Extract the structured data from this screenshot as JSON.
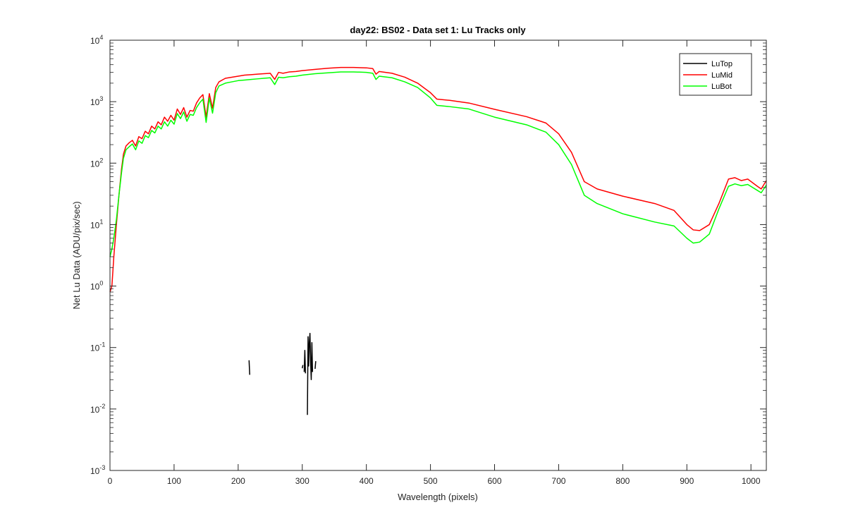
{
  "chart_data": {
    "type": "line",
    "title": "day22: BS02 - Data set 1: Lu Tracks only",
    "xlabel": "Wavelength (pixels)",
    "ylabel": "Net Lu Data (ADU/pix/sec)",
    "xlim": [
      0,
      1024
    ],
    "ylim": [
      0.001,
      10000
    ],
    "yscale": "log",
    "grid": false,
    "legend_position": "top-right",
    "x_ticks": [
      0,
      100,
      200,
      300,
      400,
      500,
      600,
      700,
      800,
      900,
      1000
    ],
    "y_ticks": [
      {
        "value": 0.001,
        "base": "10",
        "exp": "-3"
      },
      {
        "value": 0.01,
        "base": "10",
        "exp": "-2"
      },
      {
        "value": 0.1,
        "base": "10",
        "exp": "-1"
      },
      {
        "value": 1,
        "base": "10",
        "exp": "0"
      },
      {
        "value": 10,
        "base": "10",
        "exp": "1"
      },
      {
        "value": 100,
        "base": "10",
        "exp": "2"
      },
      {
        "value": 1000,
        "base": "10",
        "exp": "3"
      },
      {
        "value": 10000,
        "base": "10",
        "exp": "4"
      }
    ],
    "series": [
      {
        "name": "LuTop",
        "color": "#000000",
        "segments": [
          [
            [
              217,
              0.062
            ],
            [
              218,
              0.036
            ]
          ],
          [
            [
              300,
              0.046
            ],
            [
              301,
              0.052
            ]
          ],
          [
            [
              303,
              0.04
            ],
            [
              304,
              0.09
            ],
            [
              305,
              0.038
            ]
          ],
          [
            [
              308,
              0.008
            ],
            [
              309,
              0.15
            ],
            [
              310,
              0.05
            ],
            [
              311,
              0.12
            ],
            [
              312,
              0.17
            ],
            [
              313,
              0.06
            ],
            [
              314,
              0.03
            ],
            [
              315,
              0.12
            ],
            [
              316,
              0.04
            ]
          ],
          [
            [
              320,
              0.045
            ],
            [
              321,
              0.06
            ]
          ]
        ]
      },
      {
        "name": "LuMid",
        "color": "#ff0000",
        "points": [
          [
            0,
            0.8
          ],
          [
            3,
            1.0
          ],
          [
            6,
            3.0
          ],
          [
            10,
            10
          ],
          [
            14,
            30
          ],
          [
            18,
            80
          ],
          [
            21,
            140
          ],
          [
            25,
            190
          ],
          [
            30,
            215
          ],
          [
            35,
            235
          ],
          [
            40,
            190
          ],
          [
            45,
            270
          ],
          [
            50,
            250
          ],
          [
            55,
            330
          ],
          [
            60,
            300
          ],
          [
            65,
            400
          ],
          [
            70,
            360
          ],
          [
            75,
            470
          ],
          [
            80,
            420
          ],
          [
            85,
            560
          ],
          [
            90,
            480
          ],
          [
            95,
            600
          ],
          [
            100,
            500
          ],
          [
            105,
            760
          ],
          [
            110,
            620
          ],
          [
            115,
            800
          ],
          [
            120,
            560
          ],
          [
            125,
            720
          ],
          [
            130,
            700
          ],
          [
            135,
            950
          ],
          [
            140,
            1150
          ],
          [
            145,
            1300
          ],
          [
            150,
            560
          ],
          [
            155,
            1350
          ],
          [
            160,
            780
          ],
          [
            165,
            1700
          ],
          [
            170,
            2100
          ],
          [
            180,
            2400
          ],
          [
            190,
            2500
          ],
          [
            200,
            2600
          ],
          [
            210,
            2700
          ],
          [
            220,
            2750
          ],
          [
            230,
            2800
          ],
          [
            240,
            2850
          ],
          [
            250,
            2900
          ],
          [
            257,
            2300
          ],
          [
            263,
            3000
          ],
          [
            270,
            2900
          ],
          [
            280,
            3050
          ],
          [
            290,
            3100
          ],
          [
            300,
            3200
          ],
          [
            320,
            3350
          ],
          [
            340,
            3500
          ],
          [
            360,
            3600
          ],
          [
            380,
            3600
          ],
          [
            400,
            3550
          ],
          [
            410,
            3450
          ],
          [
            415,
            2800
          ],
          [
            420,
            3100
          ],
          [
            440,
            2900
          ],
          [
            460,
            2500
          ],
          [
            480,
            2000
          ],
          [
            500,
            1400
          ],
          [
            510,
            1100
          ],
          [
            530,
            1050
          ],
          [
            560,
            950
          ],
          [
            600,
            750
          ],
          [
            650,
            570
          ],
          [
            680,
            450
          ],
          [
            700,
            300
          ],
          [
            720,
            150
          ],
          [
            740,
            50
          ],
          [
            760,
            38
          ],
          [
            800,
            29
          ],
          [
            850,
            22
          ],
          [
            880,
            17
          ],
          [
            900,
            10
          ],
          [
            910,
            8.2
          ],
          [
            920,
            8.0
          ],
          [
            935,
            10
          ],
          [
            950,
            22
          ],
          [
            965,
            55
          ],
          [
            975,
            58
          ],
          [
            985,
            52
          ],
          [
            995,
            55
          ],
          [
            1010,
            42
          ],
          [
            1016,
            38
          ],
          [
            1024,
            52
          ]
        ]
      },
      {
        "name": "LuBot",
        "color": "#00ff00",
        "points": [
          [
            0,
            3.0
          ],
          [
            3,
            4.0
          ],
          [
            6,
            6.0
          ],
          [
            10,
            12
          ],
          [
            14,
            30
          ],
          [
            18,
            70
          ],
          [
            21,
            120
          ],
          [
            25,
            165
          ],
          [
            30,
            185
          ],
          [
            35,
            205
          ],
          [
            40,
            165
          ],
          [
            45,
            230
          ],
          [
            50,
            210
          ],
          [
            55,
            280
          ],
          [
            60,
            260
          ],
          [
            65,
            340
          ],
          [
            70,
            310
          ],
          [
            75,
            400
          ],
          [
            80,
            360
          ],
          [
            85,
            470
          ],
          [
            90,
            400
          ],
          [
            95,
            500
          ],
          [
            100,
            430
          ],
          [
            105,
            640
          ],
          [
            110,
            530
          ],
          [
            115,
            680
          ],
          [
            120,
            480
          ],
          [
            125,
            620
          ],
          [
            130,
            600
          ],
          [
            135,
            800
          ],
          [
            140,
            960
          ],
          [
            145,
            1100
          ],
          [
            150,
            460
          ],
          [
            155,
            1150
          ],
          [
            160,
            650
          ],
          [
            165,
            1400
          ],
          [
            170,
            1800
          ],
          [
            180,
            2000
          ],
          [
            190,
            2100
          ],
          [
            200,
            2200
          ],
          [
            210,
            2250
          ],
          [
            220,
            2300
          ],
          [
            230,
            2350
          ],
          [
            240,
            2400
          ],
          [
            250,
            2450
          ],
          [
            257,
            1900
          ],
          [
            263,
            2500
          ],
          [
            270,
            2450
          ],
          [
            280,
            2550
          ],
          [
            290,
            2600
          ],
          [
            300,
            2700
          ],
          [
            320,
            2850
          ],
          [
            340,
            2950
          ],
          [
            360,
            3050
          ],
          [
            380,
            3050
          ],
          [
            400,
            3000
          ],
          [
            410,
            2900
          ],
          [
            415,
            2300
          ],
          [
            420,
            2600
          ],
          [
            440,
            2450
          ],
          [
            460,
            2100
          ],
          [
            480,
            1700
          ],
          [
            500,
            1150
          ],
          [
            510,
            870
          ],
          [
            530,
            830
          ],
          [
            560,
            760
          ],
          [
            600,
            560
          ],
          [
            650,
            420
          ],
          [
            680,
            320
          ],
          [
            700,
            200
          ],
          [
            720,
            95
          ],
          [
            740,
            30
          ],
          [
            760,
            22
          ],
          [
            800,
            15
          ],
          [
            850,
            11
          ],
          [
            880,
            9.5
          ],
          [
            900,
            6.0
          ],
          [
            910,
            5.0
          ],
          [
            920,
            5.2
          ],
          [
            935,
            7.0
          ],
          [
            950,
            18
          ],
          [
            965,
            42
          ],
          [
            975,
            46
          ],
          [
            985,
            43
          ],
          [
            995,
            45
          ],
          [
            1010,
            36
          ],
          [
            1016,
            33
          ],
          [
            1024,
            44
          ]
        ]
      }
    ]
  }
}
